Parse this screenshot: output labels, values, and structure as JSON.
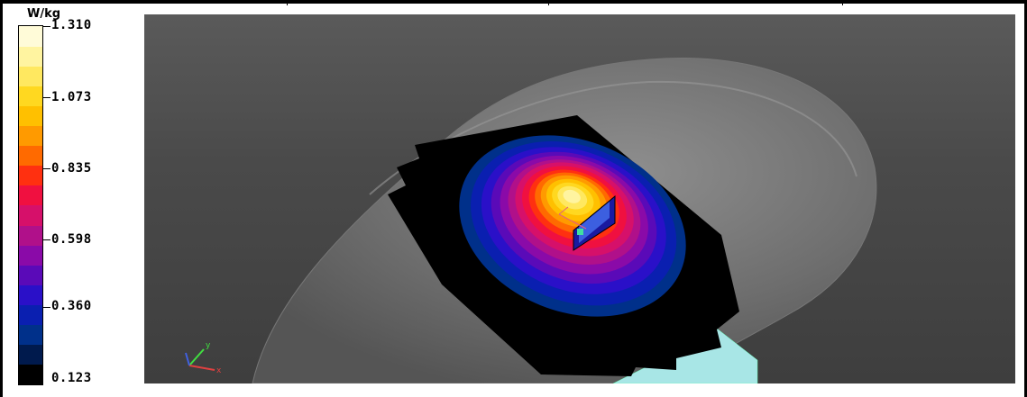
{
  "legend": {
    "unit": "W/kg",
    "ticks": [
      "1.310",
      "1.073",
      "0.835",
      "0.598",
      "0.360",
      "0.123"
    ],
    "colors": [
      "#000000",
      "#001a4d",
      "#00308a",
      "#0a1fb0",
      "#2a10c8",
      "#5a0ab8",
      "#8a0aa8",
      "#b0108a",
      "#d6106a",
      "#f01040",
      "#ff3010",
      "#ff6a00",
      "#ff9a00",
      "#ffc000",
      "#ffd820",
      "#ffe860",
      "#fff4a0",
      "#fffbd8"
    ]
  },
  "viewport": {
    "background": "#4a4a4a",
    "axes": {
      "x": "x",
      "y": "y"
    }
  }
}
